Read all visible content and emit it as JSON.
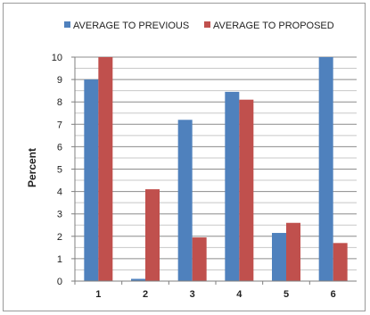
{
  "chart_data": {
    "type": "bar",
    "title": "",
    "xlabel": "",
    "ylabel": "Percent",
    "ylim": [
      0,
      10
    ],
    "yticks": [
      "0",
      "1",
      "2",
      "3",
      "4",
      "5",
      "6",
      "7",
      "8",
      "9",
      "10"
    ],
    "categories": [
      "1",
      "2",
      "3",
      "4",
      "5",
      "6"
    ],
    "series": [
      {
        "name": "AVERAGE TO PREVIOUS",
        "color": "#4f81bd",
        "values": [
          9.0,
          0.1,
          7.2,
          8.45,
          2.15,
          10.0
        ]
      },
      {
        "name": "AVERAGE TO PROPOSED",
        "color": "#c0504d",
        "values": [
          10.0,
          4.1,
          1.95,
          8.1,
          2.6,
          1.7
        ]
      }
    ],
    "grid": true,
    "minor_grid": true,
    "legend_position": "top"
  }
}
